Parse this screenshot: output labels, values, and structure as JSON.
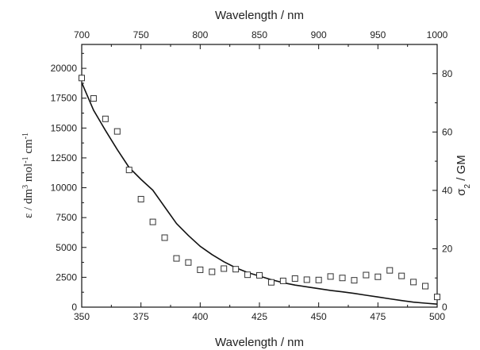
{
  "chart_data": {
    "type": "line",
    "x_bottom": {
      "label": "Wavelength / nm",
      "range": [
        350,
        500
      ],
      "ticks": [
        "350",
        "375",
        "400",
        "425",
        "450",
        "475",
        "500"
      ]
    },
    "x_top": {
      "label": "Wavelength / nm",
      "range": [
        700,
        1000
      ],
      "ticks": [
        "700",
        "750",
        "800",
        "850",
        "900",
        "950",
        "1000"
      ]
    },
    "y_left": {
      "label_parts": [
        "ε / dm",
        "3",
        " mol",
        "-1",
        " cm",
        "-1"
      ],
      "range": [
        0,
        22000
      ],
      "ticks": [
        "0",
        "2500",
        "5000",
        "7500",
        "10000",
        "12500",
        "15000",
        "17500",
        "20000"
      ]
    },
    "y_right": {
      "label_parts": [
        "σ",
        "2",
        " / GM"
      ],
      "range": [
        0,
        90
      ],
      "ticks": [
        "0",
        "20",
        "40",
        "60",
        "80"
      ]
    },
    "series": [
      {
        "type": "line",
        "axes": "bottom-left",
        "x": [
          350,
          355,
          360,
          365,
          370,
          375,
          380,
          385,
          390,
          395,
          400,
          405,
          410,
          415,
          420,
          425,
          430,
          435,
          440,
          445,
          450,
          455,
          460,
          465,
          470,
          475,
          480,
          485,
          490,
          495,
          500
        ],
        "y": [
          18800,
          16500,
          14800,
          13200,
          11700,
          10700,
          9800,
          8400,
          7000,
          6000,
          5100,
          4400,
          3800,
          3300,
          2900,
          2600,
          2300,
          2050,
          1850,
          1700,
          1550,
          1400,
          1280,
          1150,
          1000,
          850,
          700,
          550,
          420,
          330,
          250
        ]
      },
      {
        "type": "scatter",
        "marker": "open-square",
        "axes": "top-right",
        "x": [
          700,
          710,
          720,
          730,
          740,
          750,
          760,
          770,
          780,
          790,
          800,
          810,
          820,
          830,
          840,
          850,
          860,
          870,
          880,
          890,
          900,
          910,
          920,
          930,
          940,
          950,
          960,
          970,
          980,
          990,
          1000
        ],
        "y": [
          78.5,
          71.5,
          64.5,
          60.2,
          47,
          37,
          29.2,
          23.8,
          16.7,
          15.3,
          12.8,
          12.1,
          13.2,
          13.0,
          11.1,
          10.9,
          8.5,
          9.0,
          9.8,
          9.4,
          9.3,
          10.5,
          10.0,
          9.2,
          11.0,
          10.4,
          12.6,
          10.7,
          8.6,
          7.2,
          3.5
        ]
      }
    ],
    "grid": false,
    "legend": "none"
  },
  "colors": {
    "line": "#111111",
    "marker_stroke": "#333333",
    "axis": "#111111"
  }
}
